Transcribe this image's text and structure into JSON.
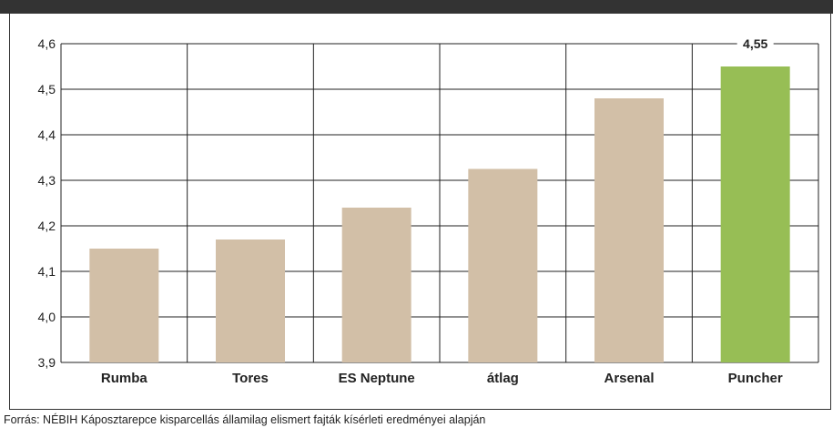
{
  "header": {
    "title_prefix": "",
    "title_accent": ""
  },
  "source_note": "Forrás: NÉBIH Káposztarepce kisparcellás államilag elismert fajták kísérleti eredményei alapján",
  "colors": {
    "bar_default": "#d2bfa7",
    "bar_highlight": "#97be55",
    "grid": "#222222",
    "header_band": "#333333"
  },
  "chart_data": {
    "type": "bar",
    "title": "",
    "xlabel": "",
    "ylabel": "",
    "categories": [
      "Rumba",
      "Tores",
      "ES Neptune",
      "átlag",
      "Arsenal",
      "Puncher"
    ],
    "values": [
      4.15,
      4.17,
      4.24,
      4.325,
      4.48,
      4.55
    ],
    "highlight_index": 5,
    "data_labels": [
      "",
      "",
      "",
      "",
      "",
      "4,55"
    ],
    "ylim": [
      3.9,
      4.6
    ],
    "yticks": [
      3.9,
      4.0,
      4.1,
      4.2,
      4.3,
      4.4,
      4.5,
      4.6
    ],
    "ytick_labels": [
      "3,9",
      "4,0",
      "4,1",
      "4,2",
      "4,3",
      "4,4",
      "4,5",
      "4,6"
    ],
    "grid": true,
    "legend": "none"
  }
}
